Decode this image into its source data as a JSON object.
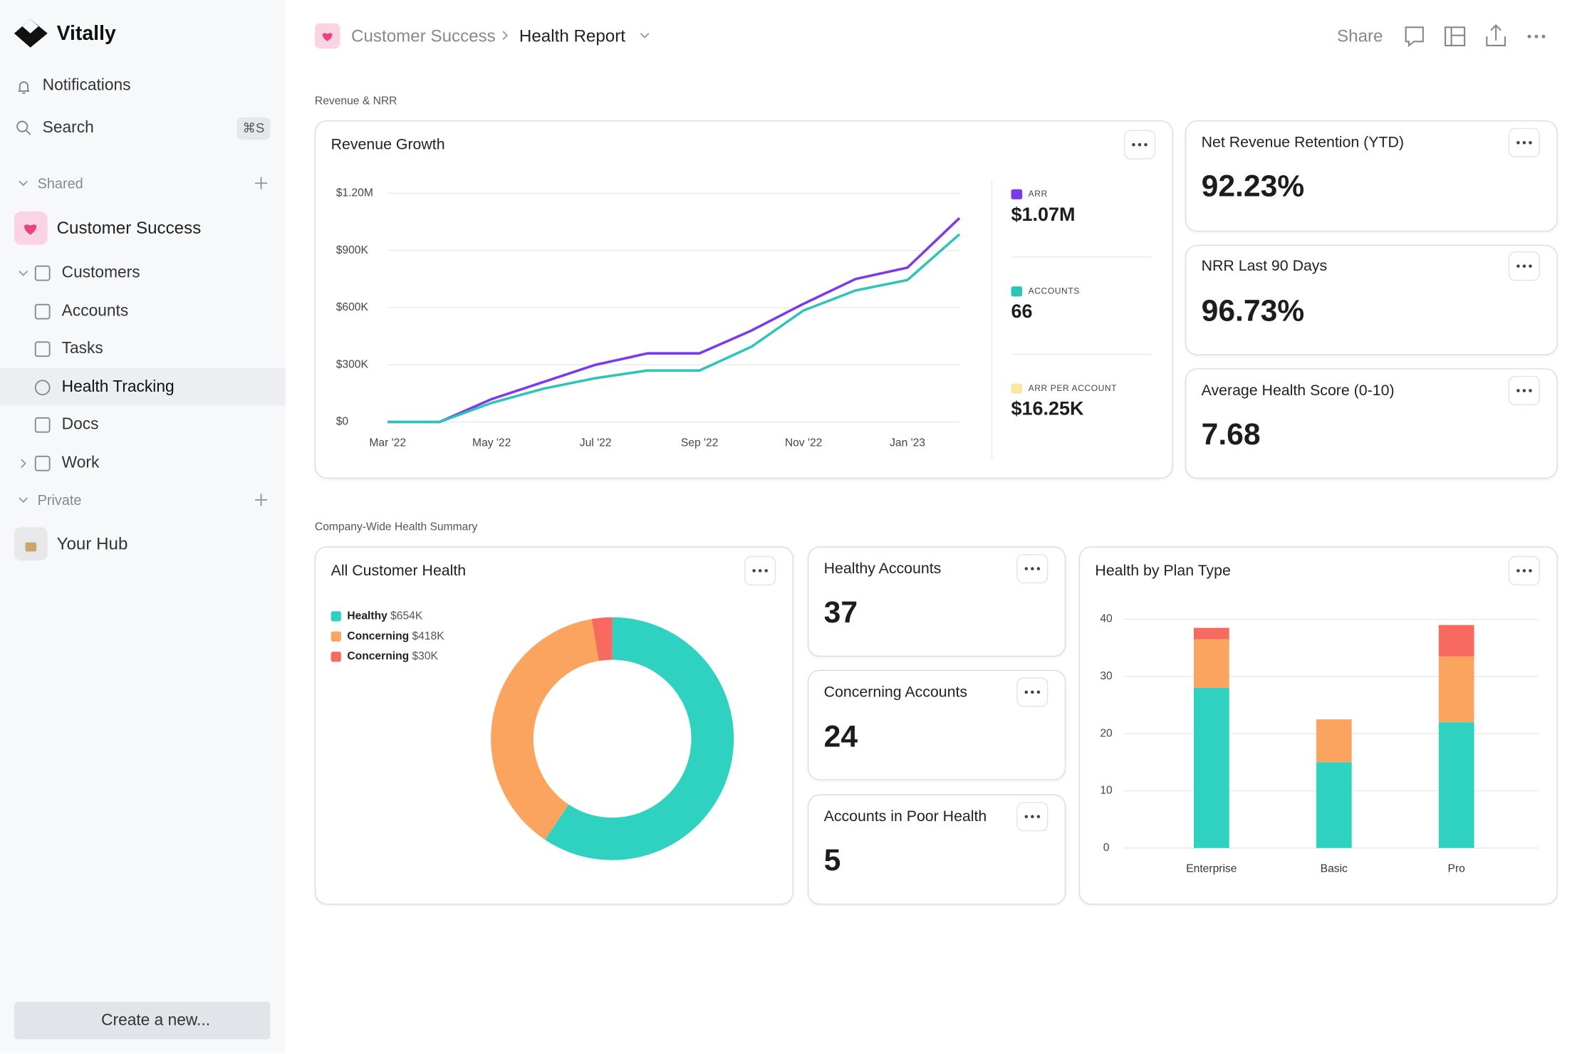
{
  "sidebar": {
    "brand": "Vitally",
    "notifications": "Notifications",
    "search": "Search",
    "shortcut": "⌘S",
    "shared": "Shared",
    "workspace": "Customer Success",
    "items": [
      "Customers",
      "Accounts",
      "Tasks",
      "Health Tracking",
      "Docs",
      "Work"
    ],
    "private": "Private",
    "hub": "Your Hub",
    "create": "Create a new..."
  },
  "header": {
    "breadcrumb": [
      "Customer Success",
      "Health Report"
    ],
    "share": "Share"
  },
  "sections": [
    "Revenue & NRR",
    "Company-Wide Health Summary"
  ],
  "kpis": [
    {
      "title": "Net Revenue Retention (YTD)",
      "value": "92.23%"
    },
    {
      "title": "NRR Last 90 Days",
      "value": "96.73%"
    },
    {
      "title": "Average Health Score (0-10)",
      "value": "7.68"
    },
    {
      "title": "Healthy Accounts",
      "value": "37"
    },
    {
      "title": "Concerning Accounts",
      "value": "24"
    },
    {
      "title": "Accounts in Poor Health",
      "value": "5"
    }
  ],
  "chart_data": [
    {
      "type": "line",
      "title": "Revenue Growth",
      "categories": [
        "Mar '22",
        null,
        "May '22",
        null,
        "Jul '22",
        null,
        "Sep '22",
        null,
        "Nov '22",
        null,
        "Jan '23",
        null
      ],
      "series": [
        {
          "name": "ARR",
          "color": "#7c3aed",
          "values": [
            0,
            0,
            120000,
            210000,
            300000,
            360000,
            360000,
            480000,
            620000,
            750000,
            810000,
            1070000
          ]
        },
        {
          "name": "ACCOUNTS",
          "color": "#2ec4b6",
          "values": [
            0,
            0,
            100000,
            175000,
            230000,
            270000,
            270000,
            395000,
            585000,
            690000,
            745000,
            985000
          ]
        }
      ],
      "legend": [
        {
          "name": "ARR",
          "color": "#7c3aed",
          "value": "$1.07M"
        },
        {
          "name": "ACCOUNTS",
          "color": "#2ec4b6",
          "value": "66"
        },
        {
          "name": "ARR PER ACCOUNT",
          "color": "#fbe7a1",
          "value": "$16.25K"
        }
      ],
      "ylim": [
        0,
        1200000
      ],
      "yticks": [
        {
          "value": 0,
          "label": "$0"
        },
        {
          "value": 300000,
          "label": "$300K"
        },
        {
          "value": 600000,
          "label": "$600K"
        },
        {
          "value": 900000,
          "label": "$900K"
        },
        {
          "value": 1200000,
          "label": "$1.20M"
        }
      ],
      "grid": true
    },
    {
      "type": "pie",
      "title": "All Customer Health",
      "categories": [
        "Healthy",
        "Concerning",
        "Concerning"
      ],
      "values": [
        654,
        418,
        30
      ],
      "value_labels": [
        "$654K",
        "$418K",
        "$30K"
      ],
      "colors": [
        "#2fd1c1",
        "#fba45f",
        "#f86a5f"
      ],
      "donut": true
    },
    {
      "type": "bar",
      "title": "Health by Plan Type",
      "stacked": true,
      "categories": [
        "Enterprise",
        "Basic",
        "Pro"
      ],
      "series": [
        {
          "color": "#2fd1c1",
          "values": [
            28,
            15,
            22
          ]
        },
        {
          "color": "#fba45f",
          "values": [
            8.5,
            7.5,
            11.5
          ]
        },
        {
          "color": "#f86a5f",
          "values": [
            2,
            0,
            5.5
          ]
        }
      ],
      "ylim": [
        0,
        40
      ],
      "yticks": [
        0,
        10,
        20,
        30,
        40
      ],
      "grid": true
    }
  ]
}
